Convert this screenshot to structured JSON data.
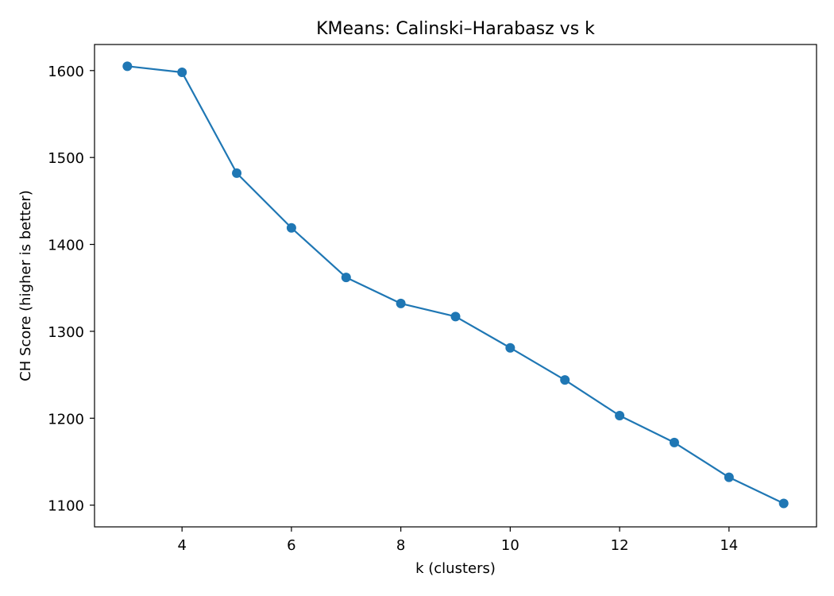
{
  "chart_data": {
    "type": "line",
    "title": "KMeans: Calinski–Harabasz vs k",
    "xlabel": "k (clusters)",
    "ylabel": "CH Score (higher is better)",
    "x": [
      3,
      4,
      5,
      6,
      7,
      8,
      9,
      10,
      11,
      12,
      13,
      14,
      15
    ],
    "series": [
      {
        "values": [
          1605,
          1598,
          1482,
          1419,
          1362,
          1332,
          1317,
          1281,
          1244,
          1203,
          1172,
          1132,
          1102
        ]
      }
    ],
    "xlim": [
      2.4,
      15.6
    ],
    "ylim": [
      1075,
      1630
    ],
    "xticks": [
      4,
      6,
      8,
      10,
      12,
      14
    ],
    "yticks": [
      1100,
      1200,
      1300,
      1400,
      1500,
      1600
    ],
    "grid": false,
    "legend": false,
    "marker": "circle",
    "colors": {
      "series": "#1f77b4",
      "axes": "#000000",
      "background": "#ffffff"
    }
  }
}
